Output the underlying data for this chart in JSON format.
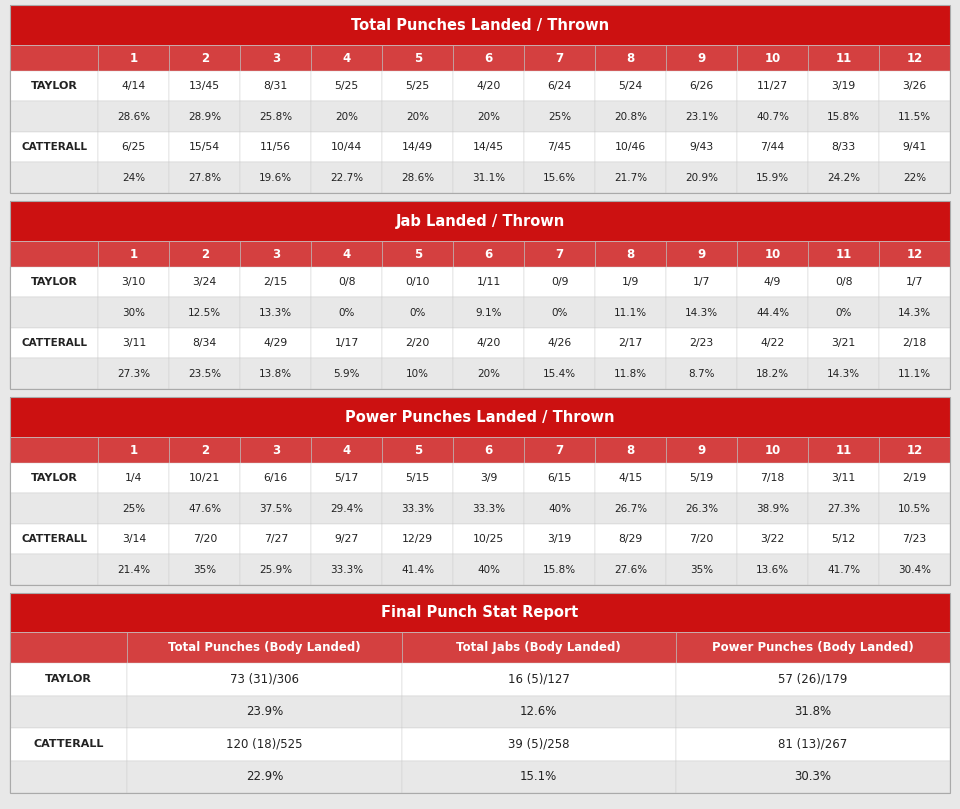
{
  "bg_color": "#ffffff",
  "outer_bg": "#e8e8e8",
  "red_header": "#cc1111",
  "red_row": "#d44040",
  "white": "#ffffff",
  "light_gray": "#e8e8e8",
  "dark_text": "#222222",
  "white_text": "#ffffff",
  "table1_title": "Total Punches Landed / Thrown",
  "table1_rounds": [
    "1",
    "2",
    "3",
    "4",
    "5",
    "6",
    "7",
    "8",
    "9",
    "10",
    "11",
    "12"
  ],
  "table1_taylor_top": [
    "4/14",
    "13/45",
    "8/31",
    "5/25",
    "5/25",
    "4/20",
    "6/24",
    "5/24",
    "6/26",
    "11/27",
    "3/19",
    "3/26"
  ],
  "table1_taylor_bot": [
    "28.6%",
    "28.9%",
    "25.8%",
    "20%",
    "20%",
    "20%",
    "25%",
    "20.8%",
    "23.1%",
    "40.7%",
    "15.8%",
    "11.5%"
  ],
  "table1_catterall_top": [
    "6/25",
    "15/54",
    "11/56",
    "10/44",
    "14/49",
    "14/45",
    "7/45",
    "10/46",
    "9/43",
    "7/44",
    "8/33",
    "9/41"
  ],
  "table1_catterall_bot": [
    "24%",
    "27.8%",
    "19.6%",
    "22.7%",
    "28.6%",
    "31.1%",
    "15.6%",
    "21.7%",
    "20.9%",
    "15.9%",
    "24.2%",
    "22%"
  ],
  "table2_title": "Jab Landed / Thrown",
  "table2_rounds": [
    "1",
    "2",
    "3",
    "4",
    "5",
    "6",
    "7",
    "8",
    "9",
    "10",
    "11",
    "12"
  ],
  "table2_taylor_top": [
    "3/10",
    "3/24",
    "2/15",
    "0/8",
    "0/10",
    "1/11",
    "0/9",
    "1/9",
    "1/7",
    "4/9",
    "0/8",
    "1/7"
  ],
  "table2_taylor_bot": [
    "30%",
    "12.5%",
    "13.3%",
    "0%",
    "0%",
    "9.1%",
    "0%",
    "11.1%",
    "14.3%",
    "44.4%",
    "0%",
    "14.3%"
  ],
  "table2_catterall_top": [
    "3/11",
    "8/34",
    "4/29",
    "1/17",
    "2/20",
    "4/20",
    "4/26",
    "2/17",
    "2/23",
    "4/22",
    "3/21",
    "2/18"
  ],
  "table2_catterall_bot": [
    "27.3%",
    "23.5%",
    "13.8%",
    "5.9%",
    "10%",
    "20%",
    "15.4%",
    "11.8%",
    "8.7%",
    "18.2%",
    "14.3%",
    "11.1%"
  ],
  "table3_title": "Power Punches Landed / Thrown",
  "table3_rounds": [
    "1",
    "2",
    "3",
    "4",
    "5",
    "6",
    "7",
    "8",
    "9",
    "10",
    "11",
    "12"
  ],
  "table3_taylor_top": [
    "1/4",
    "10/21",
    "6/16",
    "5/17",
    "5/15",
    "3/9",
    "6/15",
    "4/15",
    "5/19",
    "7/18",
    "3/11",
    "2/19"
  ],
  "table3_taylor_bot": [
    "25%",
    "47.6%",
    "37.5%",
    "29.4%",
    "33.3%",
    "33.3%",
    "40%",
    "26.7%",
    "26.3%",
    "38.9%",
    "27.3%",
    "10.5%"
  ],
  "table3_catterall_top": [
    "3/14",
    "7/20",
    "7/27",
    "9/27",
    "12/29",
    "10/25",
    "3/19",
    "8/29",
    "7/20",
    "3/22",
    "5/12",
    "7/23"
  ],
  "table3_catterall_bot": [
    "21.4%",
    "35%",
    "25.9%",
    "33.3%",
    "41.4%",
    "40%",
    "15.8%",
    "27.6%",
    "35%",
    "13.6%",
    "41.7%",
    "30.4%"
  ],
  "table4_title": "Final Punch Stat Report",
  "table4_col_headers": [
    "Total Punches (Body Landed)",
    "Total Jabs (Body Landed)",
    "Power Punches (Body Landed)"
  ],
  "table4_taylor_top": [
    "73 (31)/306",
    "16 (5)/127",
    "57 (26)/179"
  ],
  "table4_taylor_bot": [
    "23.9%",
    "12.6%",
    "31.8%"
  ],
  "table4_catterall_top": [
    "120 (18)/525",
    "39 (5)/258",
    "81 (13)/267"
  ],
  "table4_catterall_bot": [
    "22.9%",
    "15.1%",
    "30.3%"
  ]
}
